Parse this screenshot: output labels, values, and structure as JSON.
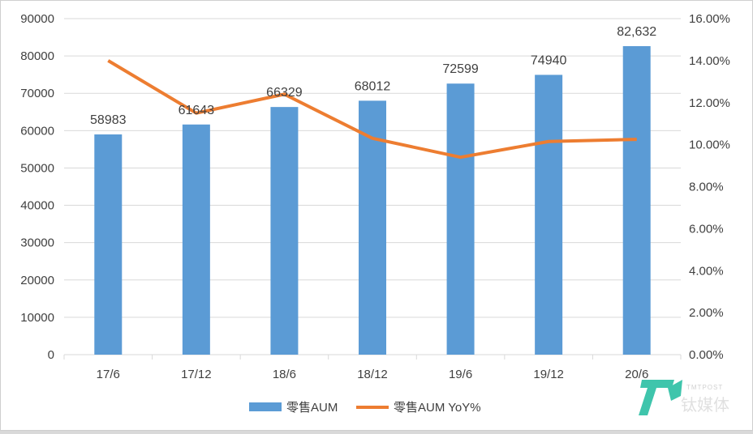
{
  "chart_data": {
    "type": "bar",
    "title": "",
    "categories": [
      "17/6",
      "17/12",
      "18/6",
      "18/12",
      "19/6",
      "19/12",
      "20/6"
    ],
    "series": [
      {
        "name": "零售AUM",
        "type": "bar",
        "axis": "left",
        "color": "#5b9bd5",
        "values": [
          58983,
          61643,
          66329,
          68012,
          72599,
          74940,
          82632
        ],
        "labels": [
          "58983",
          "61643",
          "66329",
          "68012",
          "72599",
          "74940",
          "82,632"
        ]
      },
      {
        "name": "零售AUM YoY%",
        "type": "line",
        "axis": "right",
        "color": "#ed7d31",
        "values": [
          14.0,
          11.5,
          12.4,
          10.3,
          9.4,
          10.15,
          10.25
        ]
      }
    ],
    "left_axis": {
      "ylim": [
        0,
        90000
      ],
      "ticks": [
        "0",
        "10000",
        "20000",
        "30000",
        "40000",
        "50000",
        "60000",
        "70000",
        "80000",
        "90000"
      ]
    },
    "right_axis": {
      "ylim": [
        0,
        16
      ],
      "ticks": [
        "0.00%",
        "2.00%",
        "4.00%",
        "6.00%",
        "8.00%",
        "10.00%",
        "12.00%",
        "14.00%",
        "16.00%"
      ]
    },
    "grid": true,
    "legend_position": "bottom"
  },
  "watermark": {
    "text": "TMTPOST 钛媒体"
  }
}
